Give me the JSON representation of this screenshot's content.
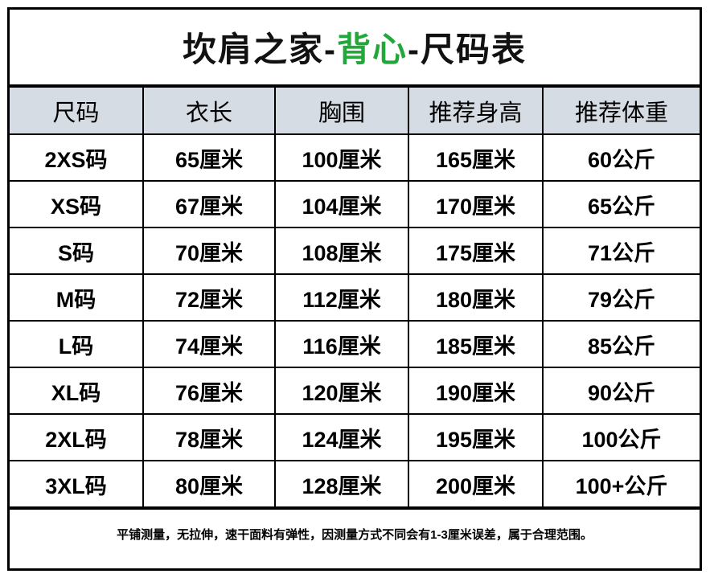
{
  "title": {
    "prefix": "坎肩之家-",
    "highlight": "背心",
    "suffix": "-尺码表",
    "accent_color": "#22a83a"
  },
  "header_bg": "#d6dce4",
  "columns": [
    "尺码",
    "衣长",
    "胸围",
    "推荐身高",
    "推荐体重"
  ],
  "rows": [
    [
      "2XS码",
      "65厘米",
      "100厘米",
      "165厘米",
      "60公斤"
    ],
    [
      "XS码",
      "67厘米",
      "104厘米",
      "170厘米",
      "65公斤"
    ],
    [
      "S码",
      "70厘米",
      "108厘米",
      "175厘米",
      "71公斤"
    ],
    [
      "M码",
      "72厘米",
      "112厘米",
      "180厘米",
      "79公斤"
    ],
    [
      "L码",
      "74厘米",
      "116厘米",
      "185厘米",
      "85公斤"
    ],
    [
      "XL码",
      "76厘米",
      "120厘米",
      "190厘米",
      "90公斤"
    ],
    [
      "2XL码",
      "78厘米",
      "124厘米",
      "195厘米",
      "100公斤"
    ],
    [
      "3XL码",
      "80厘米",
      "128厘米",
      "200厘米",
      "100+公斤"
    ]
  ],
  "note": "平铺测量，无拉伸，速干面料有弹性，因测量方式不同会有1-3厘米误差，属于合理范围。"
}
